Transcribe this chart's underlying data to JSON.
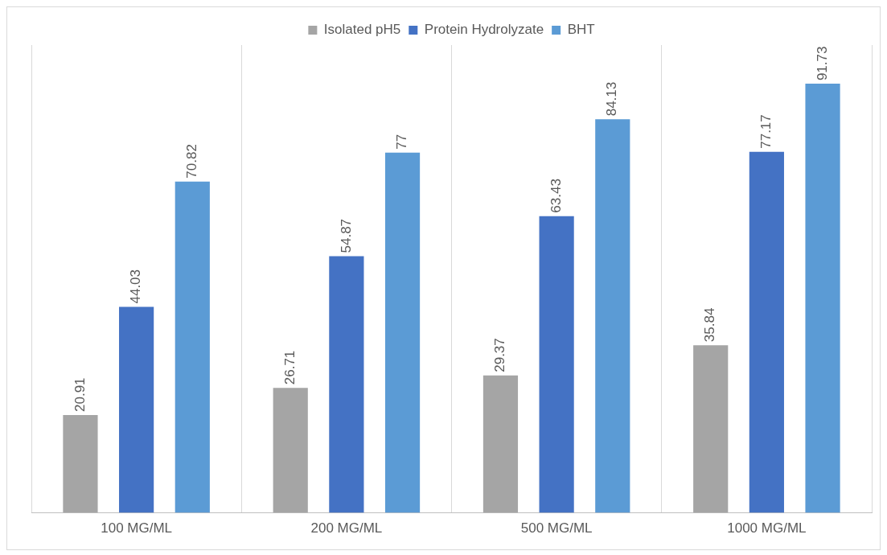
{
  "chart_data": {
    "type": "bar",
    "categories": [
      "100 MG/ML",
      "200 MG/ML",
      "500 MG/ML",
      "1000 MG/ML"
    ],
    "series": [
      {
        "name": "Isolated pH5",
        "color": "#a5a5a5",
        "values": [
          20.91,
          26.71,
          29.37,
          35.84
        ]
      },
      {
        "name": "Protein Hydrolyzate",
        "color": "#4472c4",
        "values": [
          44.03,
          54.87,
          63.43,
          77.17
        ]
      },
      {
        "name": "BHT",
        "color": "#5b9bd5",
        "values": [
          70.82,
          77,
          84.13,
          91.73
        ]
      }
    ],
    "data_labels": true,
    "grid": "x",
    "legend": "top"
  }
}
